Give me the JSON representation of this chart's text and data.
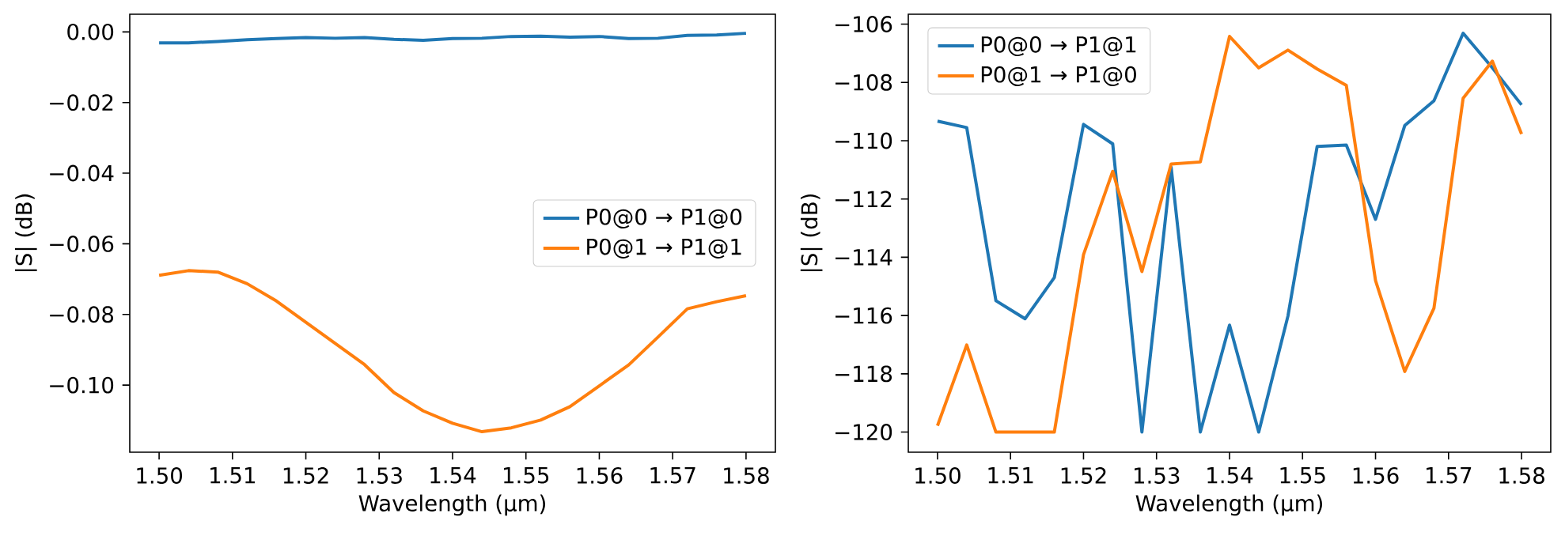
{
  "chart_data": [
    {
      "type": "line",
      "xlabel": "Wavelength (µm)",
      "ylabel": "|S| (dB)",
      "legend": "right",
      "x": [
        1.5,
        1.504,
        1.508,
        1.512,
        1.516,
        1.52,
        1.524,
        1.528,
        1.532,
        1.536,
        1.54,
        1.544,
        1.548,
        1.552,
        1.556,
        1.56,
        1.564,
        1.568,
        1.572,
        1.576,
        1.58
      ],
      "series": [
        {
          "name": "P0@0 → P1@0",
          "color": "#1f77b4",
          "values": [
            -0.0031,
            -0.0031,
            -0.0027,
            -0.0022,
            -0.0019,
            -0.0016,
            -0.0018,
            -0.0016,
            -0.0021,
            -0.0024,
            -0.0019,
            -0.0018,
            -0.0013,
            -0.0012,
            -0.0015,
            -0.0013,
            -0.0019,
            -0.0018,
            -0.001,
            -0.0009,
            -0.0004
          ]
        },
        {
          "name": "P0@1 → P1@1",
          "color": "#ff7f0e",
          "values": [
            -0.0689,
            -0.0676,
            -0.068,
            -0.0713,
            -0.0762,
            -0.0822,
            -0.0882,
            -0.0942,
            -0.1021,
            -0.1073,
            -0.1108,
            -0.1132,
            -0.1121,
            -0.1099,
            -0.1061,
            -0.1002,
            -0.0943,
            -0.0864,
            -0.0784,
            -0.0764,
            -0.0747
          ]
        }
      ],
      "xlim": [
        1.496,
        1.584
      ],
      "ylim": [
        -0.119,
        0.005
      ],
      "xticks": [
        {
          "value": 1.5,
          "label": "1.50"
        },
        {
          "value": 1.51,
          "label": "1.51"
        },
        {
          "value": 1.52,
          "label": "1.52"
        },
        {
          "value": 1.53,
          "label": "1.53"
        },
        {
          "value": 1.54,
          "label": "1.54"
        },
        {
          "value": 1.55,
          "label": "1.55"
        },
        {
          "value": 1.56,
          "label": "1.56"
        },
        {
          "value": 1.57,
          "label": "1.57"
        },
        {
          "value": 1.58,
          "label": "1.58"
        }
      ],
      "yticks": [
        {
          "value": 0,
          "label": "0.00"
        },
        {
          "value": -0.02,
          "label": "−0.02"
        },
        {
          "value": -0.04,
          "label": "−0.04"
        },
        {
          "value": -0.06,
          "label": "−0.06"
        },
        {
          "value": -0.08,
          "label": "−0.08"
        },
        {
          "value": -0.1,
          "label": "−0.10"
        }
      ]
    },
    {
      "type": "line",
      "xlabel": "Wavelength (µm)",
      "ylabel": "|S| (dB)",
      "legend": "top left",
      "x": [
        1.5,
        1.504,
        1.508,
        1.512,
        1.516,
        1.52,
        1.524,
        1.528,
        1.532,
        1.536,
        1.54,
        1.544,
        1.548,
        1.552,
        1.556,
        1.56,
        1.564,
        1.568,
        1.572,
        1.576,
        1.58
      ],
      "series": [
        {
          "name": "P0@0 → P1@1",
          "color": "#1f77b4",
          "values": [
            -109.33,
            -109.55,
            -115.49,
            -116.11,
            -114.7,
            -109.44,
            -110.11,
            -120,
            -110.91,
            -120,
            -116.33,
            -120,
            -116.02,
            -110.2,
            -110.15,
            -112.7,
            -109.48,
            -108.63,
            -106.31,
            -107.5,
            -108.77
          ]
        },
        {
          "name": "P0@1 → P1@0",
          "color": "#ff7f0e",
          "values": [
            -119.78,
            -117.01,
            -120,
            -120,
            -120,
            -113.91,
            -111.05,
            -114.49,
            -110.8,
            -110.73,
            -106.42,
            -107.5,
            -106.89,
            -107.54,
            -108.1,
            -114.8,
            -117.92,
            -115.75,
            -108.54,
            -107.27,
            -109.77
          ]
        }
      ],
      "xlim": [
        1.496,
        1.584
      ],
      "ylim": [
        -120.69,
        -105.66
      ],
      "xticks": [
        {
          "value": 1.5,
          "label": "1.50"
        },
        {
          "value": 1.51,
          "label": "1.51"
        },
        {
          "value": 1.52,
          "label": "1.52"
        },
        {
          "value": 1.53,
          "label": "1.53"
        },
        {
          "value": 1.54,
          "label": "1.54"
        },
        {
          "value": 1.55,
          "label": "1.55"
        },
        {
          "value": 1.56,
          "label": "1.56"
        },
        {
          "value": 1.57,
          "label": "1.57"
        },
        {
          "value": 1.58,
          "label": "1.58"
        }
      ],
      "yticks": [
        {
          "value": -106,
          "label": "−106"
        },
        {
          "value": -108,
          "label": "−108"
        },
        {
          "value": -110,
          "label": "−110"
        },
        {
          "value": -112,
          "label": "−112"
        },
        {
          "value": -114,
          "label": "−114"
        },
        {
          "value": -116,
          "label": "−116"
        },
        {
          "value": -118,
          "label": "−118"
        },
        {
          "value": -120,
          "label": "−120"
        }
      ]
    }
  ]
}
